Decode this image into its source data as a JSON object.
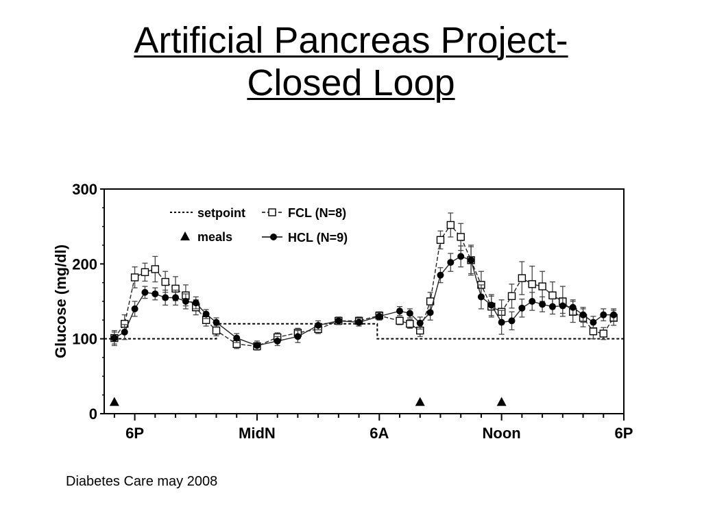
{
  "slide": {
    "title_line1": "Artificial Pancreas Project-",
    "title_line2": "Closed Loop",
    "citation": "Diabetes Care may 2008"
  },
  "chart_data": {
    "type": "line",
    "ylabel": "Glucose (mg/dl)",
    "xlabel": "",
    "ylim": [
      0,
      300
    ],
    "yticks": [
      0,
      100,
      200,
      300
    ],
    "xlim": [
      16.5,
      42.0
    ],
    "xticks": [
      {
        "label": "6P",
        "x": 18
      },
      {
        "label": "MidN",
        "x": 24
      },
      {
        "label": "6A",
        "x": 30
      },
      {
        "label": "Noon",
        "x": 36
      },
      {
        "label": "6P",
        "x": 42
      }
    ],
    "legend": [
      {
        "label": "setpoint",
        "kind": "dotted-line"
      },
      {
        "label": "meals",
        "kind": "triangle"
      },
      {
        "label": "FCL (N=8)",
        "kind": "open-square"
      },
      {
        "label": "HCL (N=9)",
        "kind": "filled-circle"
      }
    ],
    "legend_position": "top-left",
    "setpoint": {
      "name": "setpoint",
      "x": [
        16.5,
        22.0,
        22.0,
        29.9,
        29.9,
        42.0
      ],
      "y": [
        100,
        100,
        120,
        120,
        100,
        100
      ]
    },
    "meals": {
      "name": "meals",
      "x": [
        17.0,
        32.0,
        36.0
      ],
      "y": [
        15,
        15,
        15
      ]
    },
    "series": [
      {
        "name": "FCL (N=8)",
        "marker": "open-square",
        "line": "dashed",
        "x": [
          17.0,
          17.5,
          18.0,
          18.5,
          19.0,
          19.5,
          20.0,
          20.5,
          21.0,
          21.5,
          22.0,
          23.0,
          24.0,
          25.0,
          26.0,
          27.0,
          28.0,
          29.0,
          30.0,
          31.0,
          31.5,
          32.0,
          32.5,
          33.0,
          33.5,
          34.0,
          34.5,
          35.0,
          35.5,
          36.0,
          36.5,
          37.0,
          37.5,
          38.0,
          38.5,
          39.0,
          39.5,
          40.0,
          40.5,
          41.0,
          41.5
        ],
        "y": [
          101,
          120,
          182,
          189,
          193,
          176,
          167,
          158,
          142,
          125,
          111,
          93,
          90,
          102,
          108,
          113,
          124,
          124,
          131,
          124,
          120,
          111,
          150,
          232,
          252,
          236,
          205,
          172,
          143,
          136,
          157,
          181,
          173,
          170,
          158,
          150,
          136,
          128,
          110,
          107,
          128
        ],
        "err": [
          10,
          12,
          14,
          12,
          17,
          14,
          16,
          14,
          10,
          8,
          7,
          6,
          5,
          6,
          6,
          6,
          5,
          5,
          5,
          5,
          6,
          8,
          12,
          12,
          16,
          18,
          20,
          18,
          14,
          16,
          16,
          22,
          24,
          20,
          18,
          20,
          14,
          12,
          10,
          8,
          10
        ]
      },
      {
        "name": "HCL (N=9)",
        "marker": "filled-circle",
        "line": "solid",
        "x": [
          17.0,
          17.5,
          18.0,
          18.5,
          19.0,
          19.5,
          20.0,
          20.5,
          21.0,
          21.5,
          22.0,
          23.0,
          24.0,
          25.0,
          26.0,
          27.0,
          28.0,
          29.0,
          30.0,
          31.0,
          31.5,
          32.0,
          32.5,
          33.0,
          33.5,
          34.0,
          34.5,
          35.0,
          35.5,
          36.0,
          36.5,
          37.0,
          37.5,
          38.0,
          38.5,
          39.0,
          39.5,
          40.0,
          40.5,
          41.0,
          41.5
        ],
        "y": [
          101,
          109,
          140,
          162,
          160,
          155,
          155,
          150,
          148,
          133,
          122,
          101,
          91,
          97,
          103,
          118,
          124,
          122,
          130,
          137,
          134,
          121,
          135,
          185,
          202,
          210,
          205,
          156,
          145,
          122,
          124,
          141,
          150,
          146,
          143,
          144,
          142,
          132,
          122,
          132,
          132
        ],
        "err": [
          8,
          10,
          10,
          8,
          8,
          10,
          10,
          10,
          8,
          6,
          6,
          6,
          6,
          6,
          8,
          6,
          5,
          5,
          5,
          6,
          6,
          8,
          10,
          10,
          12,
          14,
          18,
          16,
          14,
          16,
          12,
          12,
          12,
          10,
          10,
          10,
          10,
          10,
          8,
          8,
          8
        ]
      }
    ]
  }
}
